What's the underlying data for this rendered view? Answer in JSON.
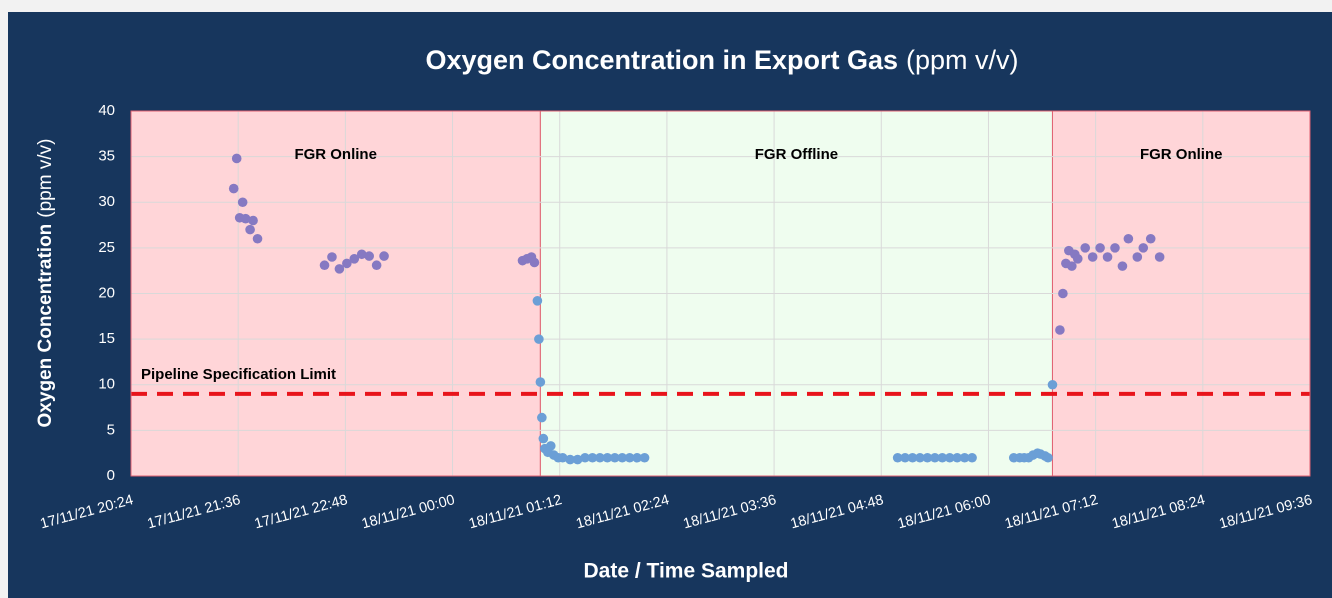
{
  "chart_data": {
    "type": "scatter",
    "title": "Oxygen Concentration in Export Gas",
    "title_unit": "(ppm v/v)",
    "xlabel": "Date / Time Sampled",
    "ylabel": "Oxygen Concentration",
    "ylabel_unit": "(ppm v/v)",
    "xlim": [
      "2021-11-17T20:24",
      "2021-11-18T09:36"
    ],
    "xticks": [
      {
        "value": "2021-11-17T20:24",
        "label": "17/11/21 20:24"
      },
      {
        "value": "2021-11-17T21:36",
        "label": "17/11/21 21:36"
      },
      {
        "value": "2021-11-17T22:48",
        "label": "17/11/21 22:48"
      },
      {
        "value": "2021-11-18T00:00",
        "label": "18/11/21 00:00"
      },
      {
        "value": "2021-11-18T01:12",
        "label": "18/11/21 01:12"
      },
      {
        "value": "2021-11-18T02:24",
        "label": "18/11/21 02:24"
      },
      {
        "value": "2021-11-18T03:36",
        "label": "18/11/21 03:36"
      },
      {
        "value": "2021-11-18T04:48",
        "label": "18/11/21 04:48"
      },
      {
        "value": "2021-11-18T06:00",
        "label": "18/11/21 06:00"
      },
      {
        "value": "2021-11-18T07:12",
        "label": "18/11/21 07:12"
      },
      {
        "value": "2021-11-18T08:24",
        "label": "18/11/21 08:24"
      },
      {
        "value": "2021-11-18T09:36",
        "label": "18/11/21 09:36"
      }
    ],
    "ylim": [
      0,
      40
    ],
    "yticks": [
      0,
      5,
      10,
      15,
      20,
      25,
      30,
      35,
      40
    ],
    "grid": true,
    "regions": [
      {
        "label": "FGR Online",
        "start": "2021-11-17T20:24",
        "end": "2021-11-18T00:59",
        "color": "#ffd5d8"
      },
      {
        "label": "FGR Offline",
        "start": "2021-11-18T00:59",
        "end": "2021-11-18T06:43",
        "color": "#effdef"
      },
      {
        "label": "FGR Online",
        "start": "2021-11-18T06:43",
        "end": "2021-11-18T09:36",
        "color": "#ffd5d8"
      }
    ],
    "threshold": {
      "value": 9,
      "label": "Pipeline Specification Limit",
      "color": "#e8141b"
    },
    "series": [
      {
        "color": "#8679c2",
        "x": [
          "2021-11-17T21:33",
          "2021-11-17T21:35",
          "2021-11-17T21:37",
          "2021-11-17T21:39",
          "2021-11-17T21:41",
          "2021-11-17T21:44",
          "2021-11-17T21:46",
          "2021-11-17T21:49",
          "2021-11-17T22:34",
          "2021-11-17T22:39",
          "2021-11-17T22:44",
          "2021-11-17T22:49",
          "2021-11-17T22:54",
          "2021-11-17T22:59",
          "2021-11-17T23:04",
          "2021-11-17T23:09",
          "2021-11-17T23:14",
          "2021-11-18T00:47",
          "2021-11-18T00:50",
          "2021-11-18T00:53",
          "2021-11-18T00:55",
          "2021-11-18T06:48",
          "2021-11-18T06:50",
          "2021-11-18T06:52",
          "2021-11-18T06:54",
          "2021-11-18T06:56",
          "2021-11-18T06:58",
          "2021-11-18T07:00",
          "2021-11-18T07:05",
          "2021-11-18T07:10",
          "2021-11-18T07:15",
          "2021-11-18T07:20",
          "2021-11-18T07:25",
          "2021-11-18T07:30",
          "2021-11-18T07:34",
          "2021-11-18T07:40",
          "2021-11-18T07:44",
          "2021-11-18T07:49",
          "2021-11-18T07:55"
        ],
        "values": [
          31.5,
          34.8,
          28.3,
          30,
          28.2,
          27,
          28,
          26,
          23.1,
          24,
          22.7,
          23.3,
          23.8,
          24.3,
          24.1,
          23.1,
          24.1,
          23.6,
          23.8,
          24,
          23.4,
          16,
          20,
          23.3,
          24.7,
          23,
          24.3,
          23.8,
          25,
          24,
          25,
          24,
          25,
          23,
          26,
          24,
          25,
          26,
          24
        ]
      },
      {
        "color": "#6b9fd6",
        "x": [
          "2021-11-18T00:57",
          "2021-11-18T00:58",
          "2021-11-18T00:59",
          "2021-11-18T01:00",
          "2021-11-18T01:01",
          "2021-11-18T01:02",
          "2021-11-18T01:04",
          "2021-11-18T01:06",
          "2021-11-18T01:08",
          "2021-11-18T01:11",
          "2021-11-18T01:14",
          "2021-11-18T01:19",
          "2021-11-18T01:24",
          "2021-11-18T01:29",
          "2021-11-18T01:34",
          "2021-11-18T01:39",
          "2021-11-18T01:44",
          "2021-11-18T01:49",
          "2021-11-18T01:54",
          "2021-11-18T01:59",
          "2021-11-18T02:04",
          "2021-11-18T02:09",
          "2021-11-18T04:59",
          "2021-11-18T05:04",
          "2021-11-18T05:09",
          "2021-11-18T05:14",
          "2021-11-18T05:19",
          "2021-11-18T05:24",
          "2021-11-18T05:29",
          "2021-11-18T05:34",
          "2021-11-18T05:39",
          "2021-11-18T05:44",
          "2021-11-18T05:49",
          "2021-11-18T06:17",
          "2021-11-18T06:21",
          "2021-11-18T06:24",
          "2021-11-18T06:27",
          "2021-11-18T06:30",
          "2021-11-18T06:33",
          "2021-11-18T06:35",
          "2021-11-18T06:38",
          "2021-11-18T06:40",
          "2021-11-18T06:43"
        ],
        "values": [
          19.2,
          15,
          10.3,
          6.4,
          4.1,
          3,
          2.6,
          3.3,
          2.3,
          2,
          2,
          1.8,
          1.8,
          2,
          2,
          2,
          2,
          2,
          2,
          2,
          2,
          2,
          2,
          2,
          2,
          2,
          2,
          2,
          2,
          2,
          2,
          2,
          2,
          2,
          2,
          2,
          2,
          2.3,
          2.5,
          2.4,
          2.2,
          2,
          10
        ]
      }
    ]
  }
}
